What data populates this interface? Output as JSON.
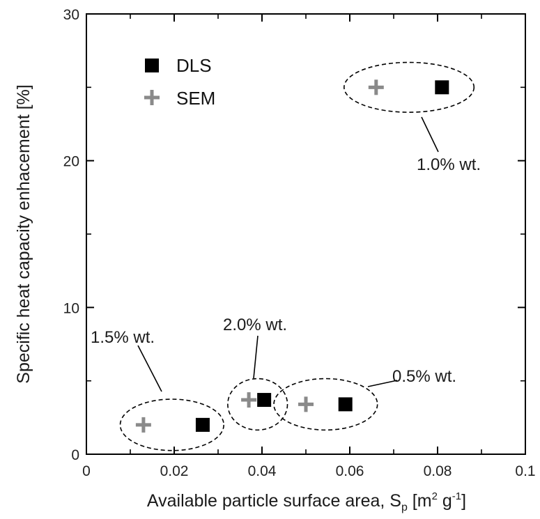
{
  "chart_data": {
    "type": "scatter",
    "title": "",
    "xlabel": "Available particle surface area, S",
    "xlabel_sub": "p",
    "xlabel_unit_open": " [m",
    "xlabel_unit_sup1": "2",
    "xlabel_unit_mid": " g",
    "xlabel_unit_sup2": "-1",
    "xlabel_unit_close": "]",
    "ylabel": "Specific heat capacity enhacement [%]",
    "xlim": [
      0,
      0.1
    ],
    "ylim": [
      0,
      30
    ],
    "xticks": [
      0,
      0.02,
      0.04,
      0.06,
      0.08,
      0.1
    ],
    "xtick_labels": [
      "0",
      "0.02",
      "0.04",
      "0.06",
      "0.08",
      "0.1"
    ],
    "yticks": [
      0,
      10,
      20,
      30
    ],
    "ytick_labels": [
      "0",
      "10",
      "20",
      "30"
    ],
    "legend_position": "top-left",
    "series": [
      {
        "name": "DLS",
        "marker": "filled-square",
        "color": "#000000",
        "points": [
          {
            "x": 0.081,
            "y": 25.0
          },
          {
            "x": 0.0265,
            "y": 2.0
          },
          {
            "x": 0.0405,
            "y": 3.7
          },
          {
            "x": 0.059,
            "y": 3.4
          }
        ]
      },
      {
        "name": "SEM",
        "marker": "plus",
        "color": "#8a8a8a",
        "points": [
          {
            "x": 0.066,
            "y": 25.0
          },
          {
            "x": 0.013,
            "y": 2.0
          },
          {
            "x": 0.037,
            "y": 3.7
          },
          {
            "x": 0.05,
            "y": 3.4
          }
        ]
      }
    ],
    "annotations": [
      {
        "label": "1.0% wt.",
        "group_center": {
          "x": 0.0735,
          "y": 25.0
        },
        "group_radius": {
          "x": 0.0148,
          "y": 1.7
        }
      },
      {
        "label": "1.5% wt.",
        "group_center": {
          "x": 0.0195,
          "y": 2.0
        },
        "group_radius": {
          "x": 0.0118,
          "y": 1.75
        }
      },
      {
        "label": "2.0% wt.",
        "group_center": {
          "x": 0.039,
          "y": 3.4
        },
        "group_radius": {
          "x": 0.0068,
          "y": 1.75
        }
      },
      {
        "label": "0.5% wt.",
        "group_center": {
          "x": 0.0545,
          "y": 3.4
        },
        "group_radius": {
          "x": 0.0118,
          "y": 1.75
        }
      }
    ]
  }
}
